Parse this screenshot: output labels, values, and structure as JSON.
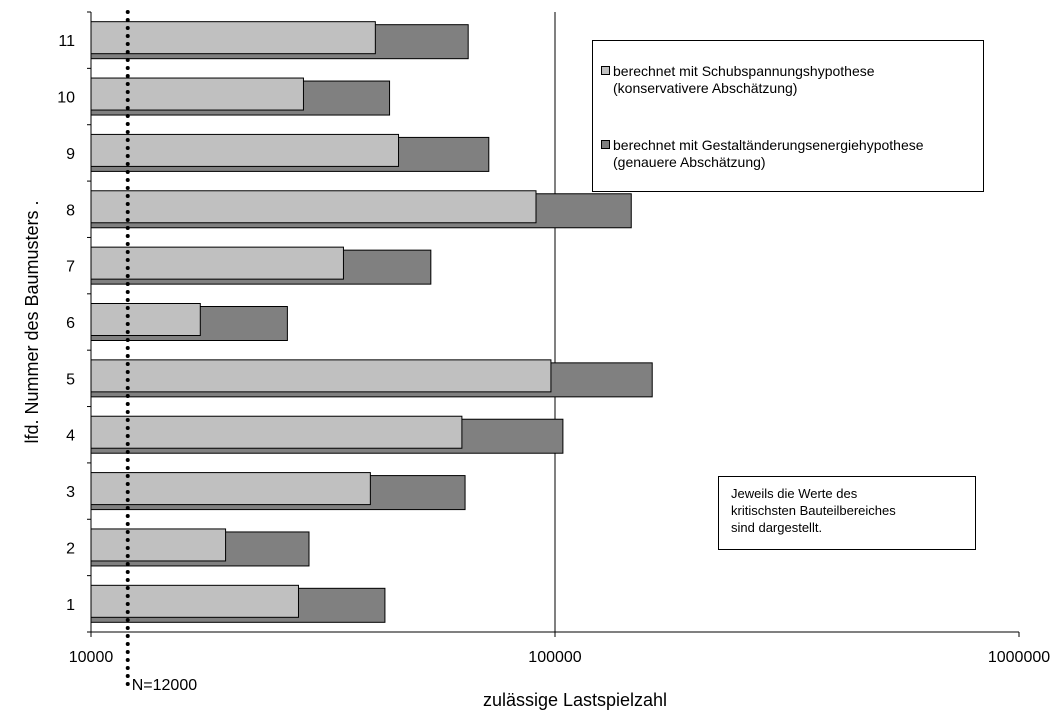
{
  "chart_data": {
    "type": "bar",
    "orientation": "horizontal",
    "stacked": "overlaid",
    "x_scale": "log",
    "xlim": [
      10000,
      1000000
    ],
    "x_ticks": [
      "10000",
      "100000",
      "1000000"
    ],
    "xlabel": "zulässige Lastspielzahl",
    "ylabel": "lfd. Nummer des Baumusters   .",
    "categories": [
      "1",
      "2",
      "3",
      "4",
      "5",
      "6",
      "7",
      "8",
      "9",
      "10",
      "11"
    ],
    "series": [
      {
        "name": "berechnet mit Schubspannungshypothese (konservativere Abschätzung)",
        "color": "#c0c0c0",
        "values": [
          28000,
          19500,
          40000,
          63000,
          98000,
          17200,
          35000,
          91000,
          46000,
          28700,
          41000
        ]
      },
      {
        "name": "berechnet mit Gestaltänderungsenergiehypothese (genauere Abschätzung)",
        "color": "#808080",
        "values": [
          43000,
          29500,
          64000,
          104000,
          162000,
          26500,
          54000,
          146000,
          72000,
          44000,
          65000
        ]
      }
    ],
    "reference_line": {
      "value": 12000,
      "label": "N=12000",
      "style": "dotted"
    },
    "vertical_gridlines": [
      100000
    ],
    "legend": {
      "placement": "top-right",
      "entries": [
        {
          "line1": "berechnet mit Schubspannungshypothese",
          "line2": "(konservativere Abschätzung)",
          "color": "#c0c0c0"
        },
        {
          "line1": "berechnet mit Gestaltänderungsenergiehypothese",
          "line2": "(genauere Abschätzung)",
          "color": "#808080"
        }
      ]
    },
    "annotation": {
      "lines": [
        "Jeweils die Werte des",
        "kritischsten Bauteilbereiches",
        "sind dargestellt."
      ]
    }
  }
}
